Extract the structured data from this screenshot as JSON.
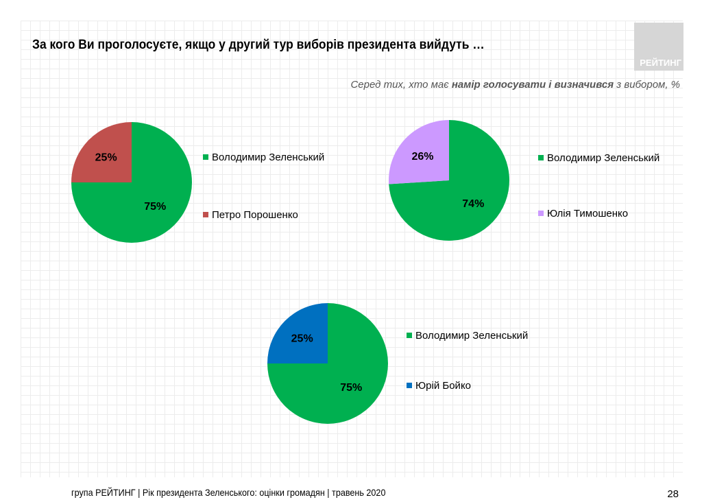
{
  "title": "За кого Ви проголосуєте, якщо у другий тур виборів президента вийдуть …",
  "logo_text": "РЕЙТИНГ",
  "subtitle": {
    "pre": "Серед тих, хто має ",
    "bold": "намір голосувати і визначився",
    "post": " з вибором, %"
  },
  "footer": "група РЕЙТИНГ |  Рік президента Зеленського: оцінки громадян | травень 2020",
  "page_number": "28",
  "chart_data": [
    {
      "type": "pie",
      "slices": [
        {
          "label": "Володимир Зеленський",
          "value": 75,
          "color": "#00b050"
        },
        {
          "label": "Петро Порошенко",
          "value": 25,
          "color": "#c0504d"
        }
      ],
      "legend": "right"
    },
    {
      "type": "pie",
      "slices": [
        {
          "label": "Володимир Зеленський",
          "value": 74,
          "color": "#00b050"
        },
        {
          "label": "Юлія Тимошенко",
          "value": 26,
          "color": "#cc99ff"
        }
      ],
      "legend": "right"
    },
    {
      "type": "pie",
      "slices": [
        {
          "label": "Володимир Зеленський",
          "value": 75,
          "color": "#00b050"
        },
        {
          "label": "Юрій Бойко",
          "value": 25,
          "color": "#0070c0"
        }
      ],
      "legend": "right"
    }
  ]
}
